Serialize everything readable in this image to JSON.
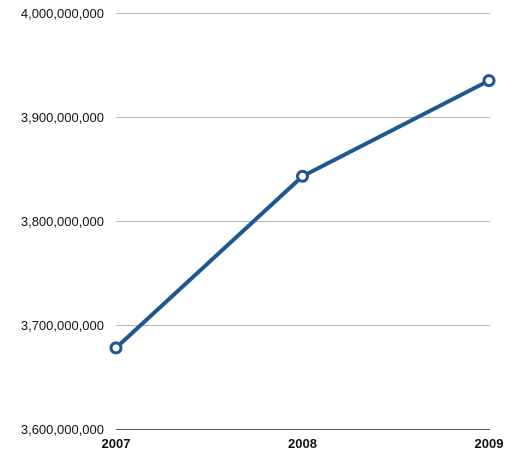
{
  "chart_data": {
    "type": "line",
    "title": "",
    "xlabel": "",
    "ylabel": "",
    "categories": [
      "2007",
      "2008",
      "2009"
    ],
    "series": [
      {
        "values": [
          3678000000,
          3843000000,
          3935000000
        ],
        "color": "#1f5891"
      }
    ],
    "ylim": [
      3600000000,
      4000000000
    ],
    "yticks": [
      3600000000,
      3700000000,
      3800000000,
      3900000000,
      4000000000
    ],
    "ytick_labels": [
      "3,600,000,000",
      "3,700,000,000",
      "3,800,000,000",
      "3,900,000,000",
      "4,000,000,000"
    ],
    "grid": true,
    "legend": "none",
    "marker": "hollow-circle"
  }
}
